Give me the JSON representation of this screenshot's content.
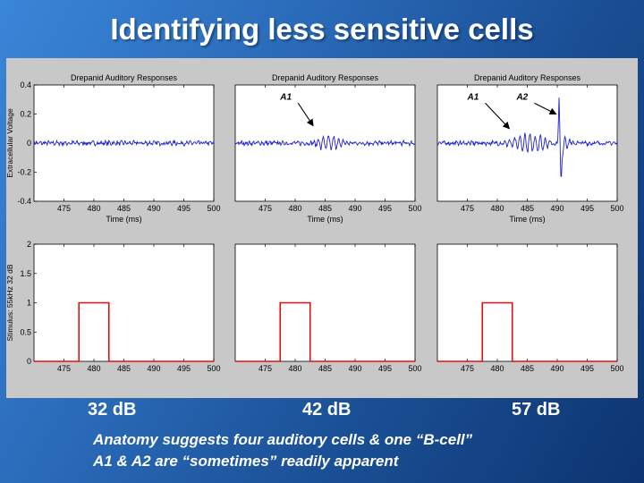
{
  "slide": {
    "title": "Identifying less sensitive cells",
    "db_labels": [
      "32 dB",
      "42 dB",
      "57 dB"
    ],
    "notes": [
      "Anatomy suggests four auditory cells & one “B-cell”",
      "A1 & A2 are “sometimes” readily apparent"
    ]
  },
  "colors": {
    "trace": "#1f1fd0",
    "stimulus": "#e01010",
    "axes_bg": "#ffffff",
    "figure_bg": "#c8c8c8"
  },
  "chart_data": [
    {
      "type": "line",
      "panel": "voltage-32dB",
      "title": "Drepanid Auditory Responses",
      "xlabel": "Time (ms)",
      "ylabel": "Extracellular Voltage",
      "xlim": [
        470,
        500
      ],
      "ylim": [
        -0.4,
        0.4
      ],
      "xticks": [
        475,
        480,
        485,
        490,
        495,
        500
      ],
      "yticks": [
        0.4,
        0.2,
        0,
        -0.2,
        -0.4
      ],
      "ytick_labels": [
        "0.4",
        "0.2",
        "0",
        "-0.2",
        "-0.4"
      ],
      "noise": 0.012,
      "events": [],
      "annotations": []
    },
    {
      "type": "line",
      "panel": "voltage-42dB",
      "title": "Drepanid Auditory Responses",
      "xlabel": "Time (ms)",
      "ylabel": "",
      "xlim": [
        470,
        500
      ],
      "ylim": [
        -0.4,
        0.4
      ],
      "xticks": [
        475,
        480,
        485,
        490,
        495,
        500
      ],
      "yticks": [],
      "noise": 0.012,
      "events": [
        {
          "start": 482.8,
          "end": 488.6,
          "amp": 0.05,
          "freq": 0.85
        }
      ],
      "annotations": [
        {
          "text": "A1",
          "x": 477.5,
          "y": 0.3,
          "arrow_to": [
            483.0,
            0.12
          ]
        }
      ]
    },
    {
      "type": "line",
      "panel": "voltage-57dB",
      "title": "Drepanid Auditory Responses",
      "xlabel": "Time (ms)",
      "ylabel": "",
      "xlim": [
        470,
        500
      ],
      "ylim": [
        -0.4,
        0.4
      ],
      "xticks": [
        475,
        480,
        485,
        490,
        495,
        500
      ],
      "yticks": [],
      "noise": 0.012,
      "events": [
        {
          "start": 481.0,
          "end": 489.8,
          "amp": 0.06,
          "freq": 0.85
        }
      ],
      "spike": {
        "t": 490.3,
        "peak": 0.33,
        "trough": -0.27
      },
      "annotations": [
        {
          "text": "A1",
          "x": 475.0,
          "y": 0.3,
          "arrow_to": [
            482.0,
            0.1
          ]
        },
        {
          "text": "A2",
          "x": 483.2,
          "y": 0.3,
          "arrow_to": [
            489.8,
            0.2
          ]
        }
      ]
    },
    {
      "type": "line",
      "panel": "stimulus-32dB",
      "title": "",
      "xlabel": "",
      "ylabel": "Stimulus: 55kHz 32 dB",
      "xlim": [
        470,
        500
      ],
      "ylim": [
        0,
        2
      ],
      "xticks": [
        475,
        480,
        485,
        490,
        495,
        500
      ],
      "yticks": [
        2,
        1.5,
        1,
        0.5,
        0
      ],
      "ytick_labels": [
        "2",
        "1.5",
        "1",
        "0.5",
        "0"
      ],
      "x": [
        470,
        477.5,
        477.5,
        482.5,
        482.5,
        500
      ],
      "y": [
        0,
        0,
        1,
        1,
        0,
        0
      ]
    },
    {
      "type": "line",
      "panel": "stimulus-42dB",
      "title": "",
      "xlabel": "",
      "ylabel": "",
      "xlim": [
        470,
        500
      ],
      "ylim": [
        0,
        2
      ],
      "xticks": [
        475,
        480,
        485,
        490,
        495,
        500
      ],
      "yticks": [],
      "x": [
        470,
        477.5,
        477.5,
        482.5,
        482.5,
        500
      ],
      "y": [
        0,
        0,
        1,
        1,
        0,
        0
      ]
    },
    {
      "type": "line",
      "panel": "stimulus-57dB",
      "title": "",
      "xlabel": "",
      "ylabel": "",
      "xlim": [
        470,
        500
      ],
      "ylim": [
        0,
        2
      ],
      "xticks": [
        475,
        480,
        485,
        490,
        495,
        500
      ],
      "yticks": [],
      "x": [
        470,
        477.5,
        477.5,
        482.5,
        482.5,
        500
      ],
      "y": [
        0,
        0,
        1,
        1,
        0,
        0
      ]
    }
  ]
}
